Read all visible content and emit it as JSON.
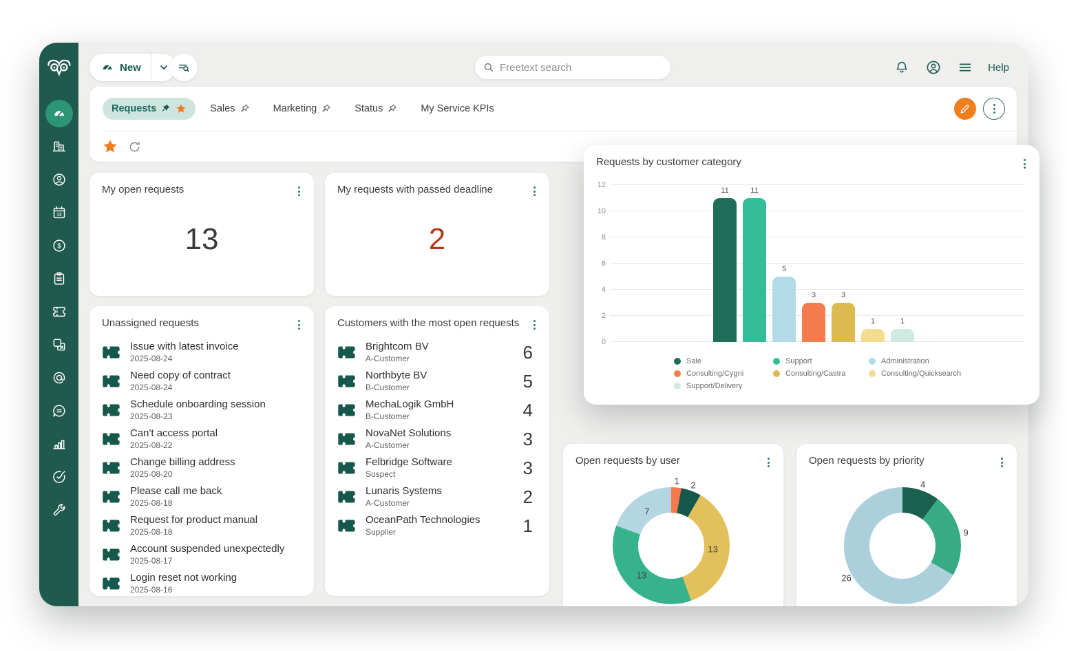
{
  "topbar": {
    "new_label": "New",
    "search_placeholder": "Freetext search",
    "help_label": "Help"
  },
  "tabs": {
    "items": [
      {
        "label": "Requests",
        "active": true,
        "pinned": true,
        "starred": true
      },
      {
        "label": "Sales",
        "active": false,
        "pinned": false
      },
      {
        "label": "Marketing",
        "active": false,
        "pinned": false
      },
      {
        "label": "Status",
        "active": false,
        "pinned": false
      },
      {
        "label": "My Service KPIs",
        "active": false,
        "pinned": false
      }
    ]
  },
  "sidebar": {
    "icons": [
      "owl-logo",
      "dashboard-gauge",
      "companies-building",
      "contacts-person",
      "calendar-12",
      "deals-dollar",
      "tasks-clipboard",
      "requests-ticket",
      "products-copy",
      "email-at",
      "chat-bubble",
      "statistics-bars",
      "goals-target",
      "settings-wrench"
    ],
    "active_icon": "dashboard-gauge"
  },
  "cards": {
    "open_requests": {
      "title": "My open requests",
      "value": "13"
    },
    "passed_deadline": {
      "title": "My requests with passed deadline",
      "value": "2"
    },
    "unassigned": {
      "title": "Unassigned requests",
      "items": [
        {
          "title": "Issue with latest invoice",
          "sub": "2025-08-24"
        },
        {
          "title": "Need copy of contract",
          "sub": "2025-08-24"
        },
        {
          "title": "Schedule onboarding session",
          "sub": "2025-08-23"
        },
        {
          "title": "Can't access portal",
          "sub": "2025-08-22"
        },
        {
          "title": "Change billing address",
          "sub": "2025-08-20"
        },
        {
          "title": "Please call me back",
          "sub": "2025-08-18"
        },
        {
          "title": "Request for product manual",
          "sub": "2025-08-18"
        },
        {
          "title": "Account suspended unexpectedly",
          "sub": "2025-08-17"
        },
        {
          "title": "Login reset not working",
          "sub": "2025-08-16"
        }
      ]
    },
    "top_customers": {
      "title": "Customers with the most open requests",
      "items": [
        {
          "title": "Brightcom BV",
          "sub": "A-Customer",
          "count": "6"
        },
        {
          "title": "Northbyte BV",
          "sub": "B-Customer",
          "count": "5"
        },
        {
          "title": "MechaLogik GmbH",
          "sub": "B-Customer",
          "count": "4"
        },
        {
          "title": "NovaNet Solutions",
          "sub": "A-Customer",
          "count": "3"
        },
        {
          "title": "Felbridge Software",
          "sub": "Suspect",
          "count": "3"
        },
        {
          "title": "Lunaris Systems",
          "sub": "A-Customer",
          "count": "2"
        },
        {
          "title": "OceanPath Technologies",
          "sub": "Supplier",
          "count": "1"
        }
      ]
    }
  },
  "chart_data": [
    {
      "type": "bar",
      "title": "Requests by customer category",
      "categories": [
        "Sale",
        "Support",
        "Administration",
        "Consulting/Cygni",
        "Consulting/Castra",
        "Consulting/Quicksearch",
        "Support/Delivery"
      ],
      "values": [
        11,
        11,
        5,
        3,
        3,
        1,
        1
      ],
      "colors": [
        "#1e6e5a",
        "#35bd97",
        "#b3dbe7",
        "#f57d4d",
        "#dcba50",
        "#f3dc90",
        "#cfeae2"
      ],
      "ylim": [
        0,
        12
      ],
      "yticks": [
        0,
        2,
        4,
        6,
        8,
        10,
        12
      ],
      "grid": true,
      "value_labels": true,
      "legend_position": "bottom"
    },
    {
      "type": "pie",
      "title": "Open requests by user",
      "values": [
        1,
        2,
        13,
        13,
        7
      ],
      "colors": [
        "#f5794a",
        "#17584c",
        "#e2c05c",
        "#36b38d",
        "#b4d5e2"
      ],
      "label_placement": [
        "outside",
        "outside",
        "inside",
        "inside",
        "inside"
      ],
      "donut": true,
      "start_angle": 0
    },
    {
      "type": "pie",
      "title": "Open requests by priority",
      "values": [
        4,
        9,
        26
      ],
      "colors": [
        "#1b5f4e",
        "#36ab84",
        "#accfdc"
      ],
      "label_placement": [
        "outside",
        "outside",
        "outside"
      ],
      "donut": true,
      "start_angle": 0
    }
  ],
  "colors": {
    "sidebar": "#20594d",
    "accent_teal": "#185a50",
    "accent_orange": "#ef7d1f",
    "danger_value": "#b13a17",
    "active_tab_bg": "#cee4df",
    "active_nav_circle": "#2e9476"
  }
}
